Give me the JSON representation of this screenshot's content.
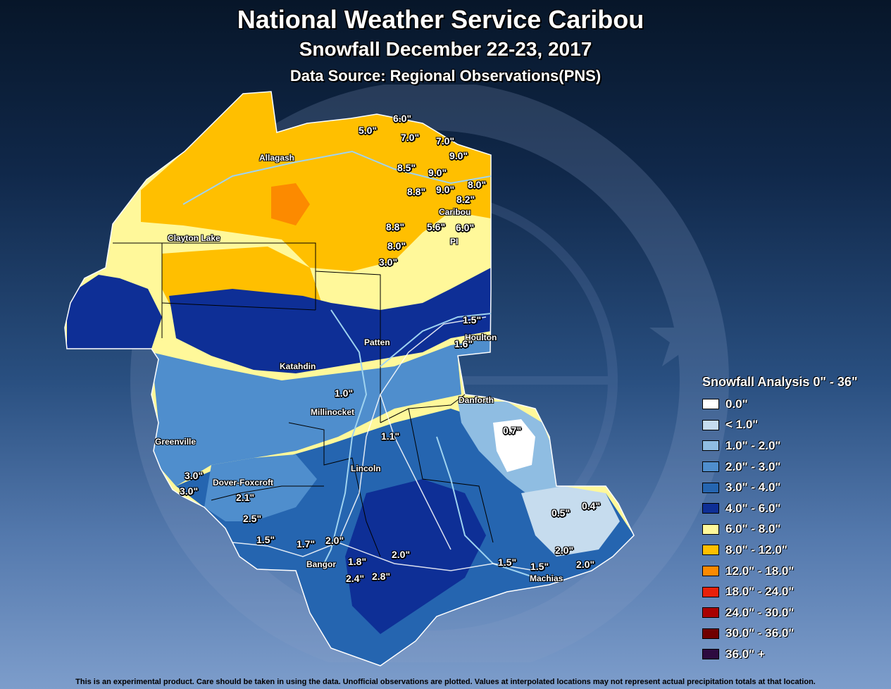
{
  "title": "National Weather Service Caribou",
  "subtitle": "Snowfall December 22-23, 2017",
  "source": "Data Source: Regional Observations(PNS)",
  "towns": [
    "Allagash",
    "Clayton Lake",
    "Caribou",
    "PI",
    "Patten",
    "Houlton",
    "Katahdin",
    "Millinocket",
    "Danforth",
    "Greenville",
    "Lincoln",
    "Dover-Foxcroft",
    "Bangor",
    "Machias"
  ],
  "observations": [
    "6.0\"",
    "5.0\"",
    "7.0\"",
    "7.0\"",
    "9.0\"",
    "8.5\"",
    "9.0\"",
    "8.8\"",
    "9.0\"",
    "8.0\"",
    "8.2\"",
    "8.8\"",
    "5.6\"",
    "6.0\"",
    "8.0\"",
    "3.0\"",
    "1.5\"",
    "1.6\"",
    "1.0\"",
    "1.1\"",
    "0.7\"",
    "3.0\"",
    "3.0\"",
    "2.1\"",
    "2.5\"",
    "1.5\"",
    "1.7\"",
    "2.0\"",
    "1.8\"",
    "2.0\"",
    "2.4\"",
    "2.8\"",
    "0.5\"",
    "0.4\"",
    "2.0\"",
    "1.5\"",
    "1.5\"",
    "2.0\""
  ],
  "legend": {
    "title": "Snowfall Analysis 0\" - 36\"",
    "items": [
      {
        "label": "0.0\"",
        "color": "#ffffff"
      },
      {
        "label": "< 1.0\"",
        "color": "#c6dcee"
      },
      {
        "label": "1.0\" - 2.0\"",
        "color": "#8fbde2"
      },
      {
        "label": "2.0\" - 3.0\"",
        "color": "#4f8ecd"
      },
      {
        "label": "3.0\" - 4.0\"",
        "color": "#2565b0"
      },
      {
        "label": "4.0\" - 6.0\"",
        "color": "#0e2f96"
      },
      {
        "label": "6.0\" - 8.0\"",
        "color": "#fff89a"
      },
      {
        "label": "8.0\" - 12.0\"",
        "color": "#ffbf00"
      },
      {
        "label": "12.0\" - 18.0\"",
        "color": "#fc8a00"
      },
      {
        "label": "18.0\" - 24.0\"",
        "color": "#e8200a"
      },
      {
        "label": "24.0\" - 30.0\"",
        "color": "#a80000"
      },
      {
        "label": "30.0\" - 36.0\"",
        "color": "#700000"
      },
      {
        "label": "36.0\" +",
        "color": "#2d0a40"
      }
    ]
  },
  "disclaimer": "This is an experimental product. Care should be taken in using the data. Unofficial observations are plotted. Values at interpolated locations may not represent actual precipitation totals at that location."
}
